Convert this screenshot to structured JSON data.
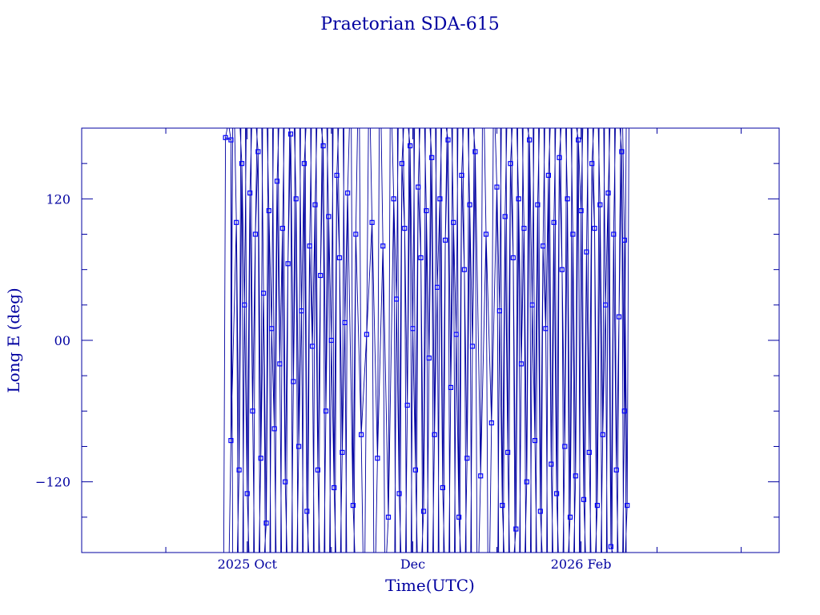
{
  "chart_data": {
    "type": "scatter",
    "title": "Praetorian SDA-615",
    "xlabel": "Time(UTC)",
    "ylabel": "Long E (deg)",
    "ylim": [
      -180,
      180
    ],
    "y_ticks": [
      -120,
      0,
      120
    ],
    "y_tick_labels": [
      "−120",
      "00",
      "120"
    ],
    "xlim": [
      "2025-08-01",
      "2026-04-15"
    ],
    "x_ticks": [
      {
        "date": "2025-10-01",
        "label": "2025 Oct"
      },
      {
        "date": "2025-12-01",
        "label": "Dec"
      },
      {
        "date": "2026-02-01",
        "label": "2026 Feb"
      }
    ],
    "x_minor_ticks": [
      "2025-09-01",
      "2025-11-01",
      "2026-01-01",
      "2026-03-01",
      "2026-04-01"
    ],
    "line_color": "#0000a0",
    "marker_color": "#0000ff",
    "grid": false,
    "series": [
      {
        "marker": "square",
        "points": [
          {
            "t": "2025-09-23",
            "lon": 172
          },
          {
            "t": "2025-09-25",
            "lon": 170
          },
          {
            "t": "2025-09-25",
            "lon": -85
          },
          {
            "t": "2025-09-27",
            "lon": 100
          },
          {
            "t": "2025-09-28",
            "lon": -110
          },
          {
            "t": "2025-09-29",
            "lon": 150
          },
          {
            "t": "2025-09-30",
            "lon": 30
          },
          {
            "t": "2025-10-01",
            "lon": -130
          },
          {
            "t": "2025-10-02",
            "lon": 125
          },
          {
            "t": "2025-10-03",
            "lon": -60
          },
          {
            "t": "2025-10-04",
            "lon": 90
          },
          {
            "t": "2025-10-05",
            "lon": 160
          },
          {
            "t": "2025-10-06",
            "lon": -100
          },
          {
            "t": "2025-10-07",
            "lon": 40
          },
          {
            "t": "2025-10-08",
            "lon": -155
          },
          {
            "t": "2025-10-09",
            "lon": 110
          },
          {
            "t": "2025-10-10",
            "lon": 10
          },
          {
            "t": "2025-10-11",
            "lon": -75
          },
          {
            "t": "2025-10-12",
            "lon": 135
          },
          {
            "t": "2025-10-13",
            "lon": -20
          },
          {
            "t": "2025-10-14",
            "lon": 95
          },
          {
            "t": "2025-10-15",
            "lon": -120
          },
          {
            "t": "2025-10-16",
            "lon": 65
          },
          {
            "t": "2025-10-17",
            "lon": 175
          },
          {
            "t": "2025-10-18",
            "lon": -35
          },
          {
            "t": "2025-10-19",
            "lon": 120
          },
          {
            "t": "2025-10-20",
            "lon": -90
          },
          {
            "t": "2025-10-21",
            "lon": 25
          },
          {
            "t": "2025-10-22",
            "lon": 150
          },
          {
            "t": "2025-10-23",
            "lon": -145
          },
          {
            "t": "2025-10-24",
            "lon": 80
          },
          {
            "t": "2025-10-25",
            "lon": -5
          },
          {
            "t": "2025-10-26",
            "lon": 115
          },
          {
            "t": "2025-10-27",
            "lon": -110
          },
          {
            "t": "2025-10-28",
            "lon": 55
          },
          {
            "t": "2025-10-29",
            "lon": 165
          },
          {
            "t": "2025-10-30",
            "lon": -60
          },
          {
            "t": "2025-10-31",
            "lon": 105
          },
          {
            "t": "2025-11-01",
            "lon": 0
          },
          {
            "t": "2025-11-02",
            "lon": -125
          },
          {
            "t": "2025-11-03",
            "lon": 140
          },
          {
            "t": "2025-11-04",
            "lon": 70
          },
          {
            "t": "2025-11-05",
            "lon": -95
          },
          {
            "t": "2025-11-06",
            "lon": 15
          },
          {
            "t": "2025-11-07",
            "lon": 125
          },
          {
            "t": "2025-11-09",
            "lon": -140
          },
          {
            "t": "2025-11-10",
            "lon": 90
          },
          {
            "t": "2025-11-12",
            "lon": -80
          },
          {
            "t": "2025-11-14",
            "lon": 5
          },
          {
            "t": "2025-11-16",
            "lon": 100
          },
          {
            "t": "2025-11-18",
            "lon": -100
          },
          {
            "t": "2025-11-20",
            "lon": 80
          },
          {
            "t": "2025-11-22",
            "lon": -150
          },
          {
            "t": "2025-11-24",
            "lon": 120
          },
          {
            "t": "2025-11-25",
            "lon": 35
          },
          {
            "t": "2025-11-26",
            "lon": -130
          },
          {
            "t": "2025-11-27",
            "lon": 150
          },
          {
            "t": "2025-11-28",
            "lon": 95
          },
          {
            "t": "2025-11-29",
            "lon": -55
          },
          {
            "t": "2025-11-30",
            "lon": 165
          },
          {
            "t": "2025-12-01",
            "lon": 10
          },
          {
            "t": "2025-12-02",
            "lon": -110
          },
          {
            "t": "2025-12-03",
            "lon": 130
          },
          {
            "t": "2025-12-04",
            "lon": 70
          },
          {
            "t": "2025-12-05",
            "lon": -145
          },
          {
            "t": "2025-12-06",
            "lon": 110
          },
          {
            "t": "2025-12-07",
            "lon": -15
          },
          {
            "t": "2025-12-08",
            "lon": 155
          },
          {
            "t": "2025-12-09",
            "lon": -80
          },
          {
            "t": "2025-12-10",
            "lon": 45
          },
          {
            "t": "2025-12-11",
            "lon": 120
          },
          {
            "t": "2025-12-12",
            "lon": -125
          },
          {
            "t": "2025-12-13",
            "lon": 85
          },
          {
            "t": "2025-12-14",
            "lon": 170
          },
          {
            "t": "2025-12-15",
            "lon": -40
          },
          {
            "t": "2025-12-16",
            "lon": 100
          },
          {
            "t": "2025-12-17",
            "lon": 5
          },
          {
            "t": "2025-12-18",
            "lon": -150
          },
          {
            "t": "2025-12-19",
            "lon": 140
          },
          {
            "t": "2025-12-20",
            "lon": 60
          },
          {
            "t": "2025-12-21",
            "lon": -100
          },
          {
            "t": "2025-12-22",
            "lon": 115
          },
          {
            "t": "2025-12-23",
            "lon": -5
          },
          {
            "t": "2025-12-24",
            "lon": 160
          },
          {
            "t": "2025-12-26",
            "lon": -115
          },
          {
            "t": "2025-12-28",
            "lon": 90
          },
          {
            "t": "2025-12-30",
            "lon": -70
          },
          {
            "t": "2026-01-01",
            "lon": 130
          },
          {
            "t": "2026-01-02",
            "lon": 25
          },
          {
            "t": "2026-01-03",
            "lon": -140
          },
          {
            "t": "2026-01-04",
            "lon": 105
          },
          {
            "t": "2026-01-05",
            "lon": -95
          },
          {
            "t": "2026-01-06",
            "lon": 150
          },
          {
            "t": "2026-01-07",
            "lon": 70
          },
          {
            "t": "2026-01-08",
            "lon": -160
          },
          {
            "t": "2026-01-09",
            "lon": 120
          },
          {
            "t": "2026-01-10",
            "lon": -20
          },
          {
            "t": "2026-01-11",
            "lon": 95
          },
          {
            "t": "2026-01-12",
            "lon": -120
          },
          {
            "t": "2026-01-13",
            "lon": 170
          },
          {
            "t": "2026-01-14",
            "lon": 30
          },
          {
            "t": "2026-01-15",
            "lon": -85
          },
          {
            "t": "2026-01-16",
            "lon": 115
          },
          {
            "t": "2026-01-17",
            "lon": -145
          },
          {
            "t": "2026-01-18",
            "lon": 80
          },
          {
            "t": "2026-01-19",
            "lon": 10
          },
          {
            "t": "2026-01-20",
            "lon": 140
          },
          {
            "t": "2026-01-21",
            "lon": -105
          },
          {
            "t": "2026-01-22",
            "lon": 100
          },
          {
            "t": "2026-01-23",
            "lon": -130
          },
          {
            "t": "2026-01-24",
            "lon": 155
          },
          {
            "t": "2026-01-25",
            "lon": 60
          },
          {
            "t": "2026-01-26",
            "lon": -90
          },
          {
            "t": "2026-01-27",
            "lon": 120
          },
          {
            "t": "2026-01-28",
            "lon": -150
          },
          {
            "t": "2026-01-29",
            "lon": 90
          },
          {
            "t": "2026-01-30",
            "lon": -115
          },
          {
            "t": "2026-01-31",
            "lon": 170
          },
          {
            "t": "2026-02-01",
            "lon": 110
          },
          {
            "t": "2026-02-02",
            "lon": -135
          },
          {
            "t": "2026-02-03",
            "lon": 75
          },
          {
            "t": "2026-02-04",
            "lon": -95
          },
          {
            "t": "2026-02-05",
            "lon": 150
          },
          {
            "t": "2026-02-06",
            "lon": 95
          },
          {
            "t": "2026-02-07",
            "lon": -140
          },
          {
            "t": "2026-02-08",
            "lon": 115
          },
          {
            "t": "2026-02-09",
            "lon": -80
          },
          {
            "t": "2026-02-10",
            "lon": 30
          },
          {
            "t": "2026-02-11",
            "lon": 125
          },
          {
            "t": "2026-02-12",
            "lon": -175
          },
          {
            "t": "2026-02-13",
            "lon": 90
          },
          {
            "t": "2026-02-14",
            "lon": -110
          },
          {
            "t": "2026-02-15",
            "lon": 20
          },
          {
            "t": "2026-02-16",
            "lon": 160
          },
          {
            "t": "2026-02-17",
            "lon": -60
          },
          {
            "t": "2026-02-17",
            "lon": 85
          },
          {
            "t": "2026-02-18",
            "lon": -140
          }
        ]
      }
    ]
  }
}
